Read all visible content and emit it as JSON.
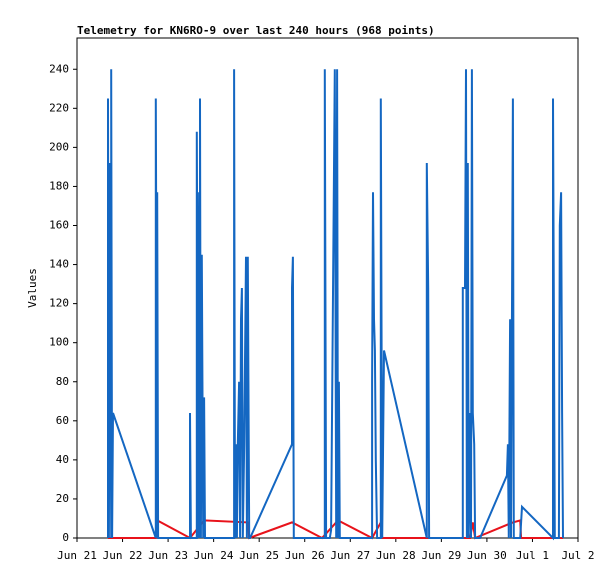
{
  "chart_data": {
    "type": "line",
    "title": "Telemetry for KN6RO-9 over last 240 hours (968 points)",
    "y_label": "Values",
    "xlim": [
      0,
      11
    ],
    "xticks": [
      {
        "value": 0,
        "label": "Jun 21"
      },
      {
        "value": 1,
        "label": "Jun 22"
      },
      {
        "value": 2,
        "label": "Jun 23"
      },
      {
        "value": 3,
        "label": "Jun 24"
      },
      {
        "value": 4,
        "label": "Jun 25"
      },
      {
        "value": 5,
        "label": "Jun 26"
      },
      {
        "value": 6,
        "label": "Jun 27"
      },
      {
        "value": 7,
        "label": "Jun 28"
      },
      {
        "value": 8,
        "label": "Jun 29"
      },
      {
        "value": 9,
        "label": "Jun 30"
      },
      {
        "value": 10,
        "label": "Jul 1"
      },
      {
        "value": 11,
        "label": "Jul 2"
      }
    ],
    "ylim": [
      0,
      256
    ],
    "yticks": [
      0,
      20,
      40,
      60,
      80,
      100,
      120,
      140,
      160,
      180,
      200,
      220,
      240
    ],
    "series": [
      {
        "color": "#e8131b",
        "x": [
          0.68,
          1.73,
          1.76,
          2.48,
          2.79,
          3.75,
          3.78,
          4.72,
          5.38,
          5.73,
          6.48,
          6.67,
          6.7,
          8.63,
          8.69,
          8.74,
          9.57,
          9.73,
          9.75,
          10.67
        ],
        "values": [
          0,
          0,
          9,
          0,
          9,
          8,
          0,
          8,
          0,
          9,
          0,
          8,
          0,
          0,
          8,
          0,
          8,
          9,
          0,
          0
        ]
      },
      {
        "color": "#1467c2",
        "x": [
          0.68,
          0.68,
          0.7,
          0.72,
          0.75,
          0.75,
          0.77,
          0.79,
          1.73,
          1.73,
          1.76,
          1.76,
          1.78,
          2.48,
          2.48,
          2.5,
          2.63,
          2.63,
          2.66,
          2.68,
          2.7,
          2.7,
          2.72,
          2.74,
          2.77,
          2.79,
          2.81,
          3.45,
          3.45,
          3.47,
          3.49,
          3.51,
          3.53,
          3.56,
          3.58,
          3.6,
          3.62,
          3.64,
          3.67,
          3.71,
          3.73,
          3.75,
          3.78,
          3.8,
          4.72,
          4.72,
          4.74,
          4.76,
          5.44,
          5.44,
          5.47,
          5.55,
          5.58,
          5.66,
          5.69,
          5.71,
          5.73,
          5.75,
          5.77,
          6.48,
          6.48,
          6.5,
          6.52,
          6.54,
          6.56,
          6.59,
          6.67,
          6.67,
          6.7,
          6.74,
          7.68,
          7.68,
          7.71,
          7.73,
          8.47,
          8.47,
          8.52,
          8.54,
          8.56,
          8.58,
          8.6,
          8.63,
          8.65,
          8.67,
          8.69,
          8.72,
          8.74,
          8.85,
          9.44,
          9.46,
          9.48,
          9.51,
          9.53,
          9.57,
          9.59,
          9.73,
          9.77,
          10.45,
          10.45,
          10.47,
          10.49,
          10.58,
          10.6,
          10.63,
          10.65,
          10.67
        ],
        "values": [
          0,
          225,
          0,
          192,
          0,
          240,
          0,
          64,
          0,
          225,
          0,
          177,
          0,
          0,
          64,
          0,
          0,
          208,
          0,
          177,
          0,
          225,
          0,
          145,
          0,
          72,
          0,
          0,
          240,
          0,
          48,
          0,
          48,
          80,
          0,
          112,
          128,
          0,
          48,
          144,
          0,
          144,
          0,
          0,
          48,
          128,
          144,
          0,
          0,
          240,
          0,
          0,
          4,
          240,
          0,
          240,
          0,
          80,
          0,
          0,
          80,
          177,
          112,
          96,
          40,
          0,
          0,
          225,
          0,
          96,
          0,
          192,
          128,
          0,
          0,
          128,
          128,
          240,
          0,
          192,
          0,
          64,
          0,
          240,
          64,
          48,
          0,
          0,
          32,
          48,
          0,
          112,
          0,
          225,
          0,
          0,
          16,
          0,
          225,
          112,
          0,
          0,
          160,
          177,
          64,
          0
        ]
      }
    ]
  }
}
